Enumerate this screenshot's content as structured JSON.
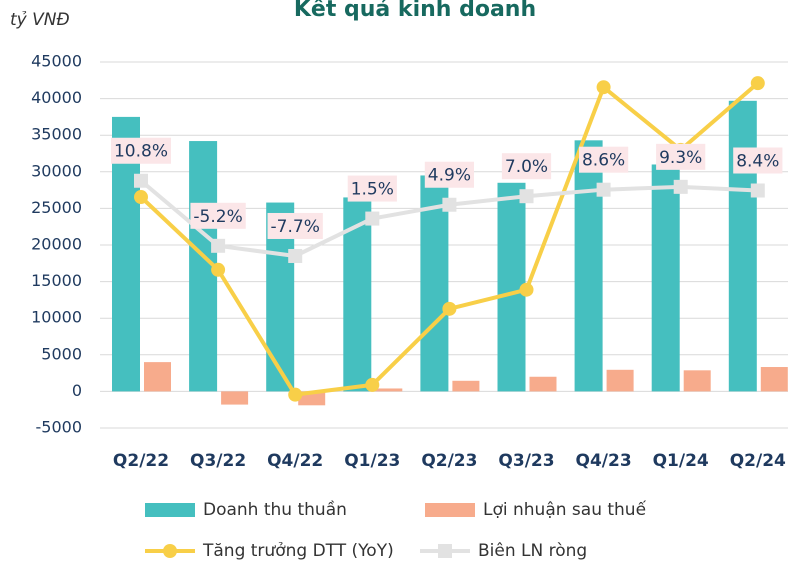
{
  "chart_data": {
    "type": "bar",
    "title": "Kết quả kinh doanh",
    "y_label": "tỷ VNĐ",
    "categories": [
      "Q2/22",
      "Q3/22",
      "Q4/22",
      "Q1/23",
      "Q2/23",
      "Q3/23",
      "Q4/23",
      "Q1/24",
      "Q2/24"
    ],
    "series": [
      {
        "name": "Doanh thu thuần",
        "type": "bar",
        "color": "#45bfbf",
        "values": [
          37500,
          34200,
          25800,
          26500,
          29500,
          28500,
          34300,
          31000,
          39700
        ]
      },
      {
        "name": "Lợi nhuận sau thuế",
        "type": "bar",
        "color": "#f7ab8c",
        "values": [
          4000,
          -1800,
          -1900,
          400,
          1450,
          2000,
          2950,
          2880,
          3330
        ]
      },
      {
        "name": "Tăng trưởng DTT (YoY)",
        "type": "line",
        "axis": "y2",
        "color": "#f8cf48",
        "marker": "circle",
        "values": [
          6.8,
          -11.1,
          -41.8,
          -39.4,
          -20.7,
          -16.0,
          33.8,
          18.4,
          34.8
        ]
      },
      {
        "name": "Biên LN ròng",
        "type": "line",
        "axis": "y2",
        "color": "#e2e2e2",
        "marker": "square",
        "values": [
          10.8,
          -5.2,
          -7.7,
          1.5,
          4.9,
          7.0,
          8.6,
          9.3,
          8.4
        ],
        "value_labels": [
          "10.8%",
          "-5.2%",
          "-7.7%",
          "1.5%",
          "4.9%",
          "7.0%",
          "8.6%",
          "9.3%",
          "8.4%"
        ]
      }
    ],
    "ylim": [
      -5000,
      45000
    ],
    "yticks": [
      -5000,
      0,
      5000,
      10000,
      15000,
      20000,
      25000,
      30000,
      35000,
      40000,
      45000
    ],
    "y2lim": [
      -50,
      40
    ],
    "grid": true
  }
}
